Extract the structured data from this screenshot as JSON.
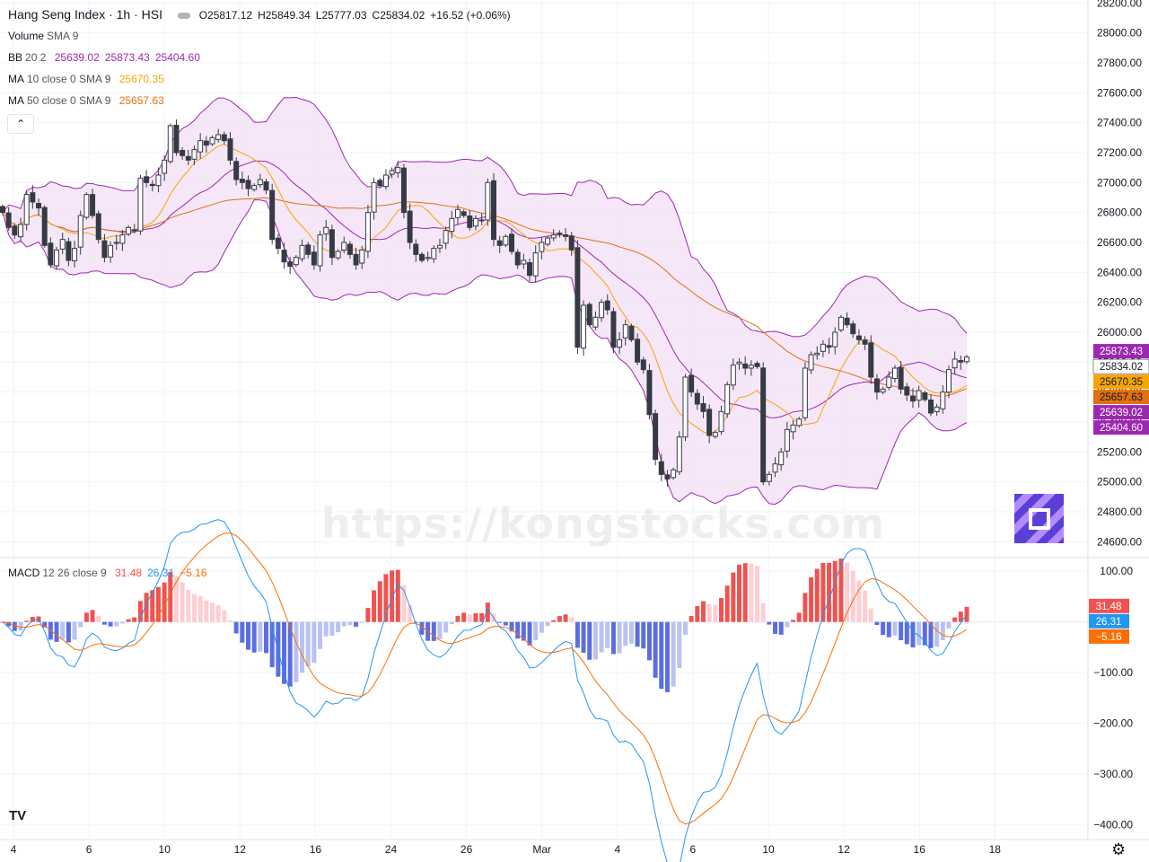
{
  "header": {
    "symbol_title": "Hang Seng Index · 1h · HSI",
    "ohlc": {
      "open": "O25817.12",
      "high": "H25849.34",
      "low": "L25777.03",
      "close": "C25834.02",
      "change": "+16.52 (+0.06%)"
    }
  },
  "indicators": {
    "volume": {
      "name": "Volume",
      "params": "SMA 9"
    },
    "bb": {
      "name": "BB",
      "params": "20 2",
      "values": [
        "25639.02",
        "25873.43",
        "25404.60"
      ]
    },
    "ma10": {
      "name": "MA",
      "params": "10 close 0 SMA 9",
      "value": "25670.35"
    },
    "ma50": {
      "name": "MA",
      "params": "50 close 0 SMA 9",
      "value": "25657.63"
    },
    "macd": {
      "name": "MACD",
      "params": "12 26 close 9",
      "values": [
        "31.48",
        "26.31",
        "−5.16"
      ]
    }
  },
  "collapse_icon": "chevron-up-icon",
  "watermark": "https://kongstocks.com",
  "tradingview_logo": "TV",
  "settings_icon": "gear-icon",
  "colors": {
    "up": "#ffffff",
    "down": "#363a45",
    "bb_band": "#9c27b0",
    "bb_fill": "#f3e3f7",
    "ma10": "#f7a600",
    "ma50": "#e07010",
    "macd_line": "#2196f3",
    "signal_line": "#ff6d00",
    "hist_pos_strong": "#ef5350",
    "hist_pos_weak": "#ffcdd2",
    "hist_neg_strong": "#5b6ee1",
    "hist_neg_weak": "#b9c2f0",
    "price_label": "#ffffff",
    "bb_label": "#9c27b0",
    "ma10_label": "#f7a600",
    "ma50_label": "#e07010"
  },
  "chart_data": [
    {
      "type": "candlestick",
      "title": "Hang Seng Index · 1h · HSI",
      "x_tick_labels": [
        "4",
        "6",
        "10",
        "12",
        "16",
        "24",
        "26",
        "Mar",
        "4",
        "6",
        "10",
        "12",
        "16",
        "18"
      ],
      "y_tick_labels": [
        "28200.00",
        "28000.00",
        "27800.00",
        "27600.00",
        "27400.00",
        "27200.00",
        "27000.00",
        "26800.00",
        "26600.00",
        "26400.00",
        "26200.00",
        "26000.00",
        "25800.00",
        "25600.00",
        "25400.00",
        "25200.00",
        "25000.00",
        "24800.00",
        "24600.00"
      ],
      "ylim": [
        24500,
        28220
      ],
      "last_value_labels": [
        {
          "text": "25873.43",
          "series": "BB upper",
          "value": 25873.43
        },
        {
          "text": "25834.02",
          "series": "Price",
          "value": 25834.02
        },
        {
          "text": "25670.35",
          "series": "MA 10",
          "value": 25670.35
        },
        {
          "text": "25657.63",
          "series": "MA 50",
          "value": 25657.63
        },
        {
          "text": "25639.02",
          "series": "BB basis",
          "value": 25639.02
        },
        {
          "text": "25404.60",
          "series": "BB lower",
          "value": 25404.6
        }
      ],
      "close_series": [
        26800,
        26700,
        26650,
        26720,
        26920,
        26870,
        26830,
        26580,
        26450,
        26550,
        26620,
        26480,
        26560,
        26780,
        26920,
        26780,
        26620,
        26500,
        26580,
        26600,
        26650,
        26700,
        26680,
        27030,
        27000,
        26980,
        27050,
        27150,
        27380,
        27200,
        27180,
        27150,
        27220,
        27280,
        27250,
        27300,
        27320,
        27280,
        27150,
        27020,
        27000,
        26960,
        26980,
        27020,
        26950,
        26620,
        26560,
        26470,
        26440,
        26500,
        26580,
        26520,
        26450,
        26650,
        26700,
        26500,
        26540,
        26600,
        26520,
        26450,
        26550,
        26800,
        27000,
        26980,
        27050,
        27080,
        27100,
        26800,
        26600,
        26520,
        26480,
        26500,
        26560,
        26580,
        26680,
        26760,
        26820,
        26780,
        26700,
        26760,
        26750,
        27000,
        26620,
        26580,
        26640,
        26540,
        26450,
        26480,
        26380,
        26530,
        26600,
        26630,
        26650,
        26660,
        26640,
        26550,
        25900,
        26180,
        26050,
        26100,
        26200,
        26150,
        25900,
        25950,
        26050,
        25950,
        25800,
        25750,
        25450,
        25150,
        25050,
        25020,
        25080,
        25300,
        25700,
        25600,
        25520,
        25470,
        25310,
        25330,
        25470,
        25650,
        25780,
        25800,
        25760,
        25780,
        25770,
        25000,
        25050,
        25120,
        25200,
        25350,
        25380,
        25420,
        25760,
        25850,
        25860,
        25920,
        25900,
        26000,
        26100,
        26050,
        25990,
        25950,
        25920,
        25700,
        25600,
        25620,
        25700,
        25760,
        25620,
        25580,
        25540,
        25610,
        25550,
        25460,
        25500,
        25600,
        25750,
        25820,
        25800,
        25834
      ]
    },
    {
      "type": "bar",
      "title": "MACD 12 26 close 9",
      "y_tick_labels": [
        "100.00",
        "−100.00",
        "−200.00",
        "−300.00",
        "−400.00"
      ],
      "ylim": [
        -420,
        125
      ],
      "last_value_labels": [
        {
          "text": "31.48",
          "series": "Histogram",
          "value": 31.48
        },
        {
          "text": "26.31",
          "series": "MACD",
          "value": 26.31
        },
        {
          "text": "−5.16",
          "series": "Signal",
          "value": -5.16
        }
      ]
    }
  ]
}
